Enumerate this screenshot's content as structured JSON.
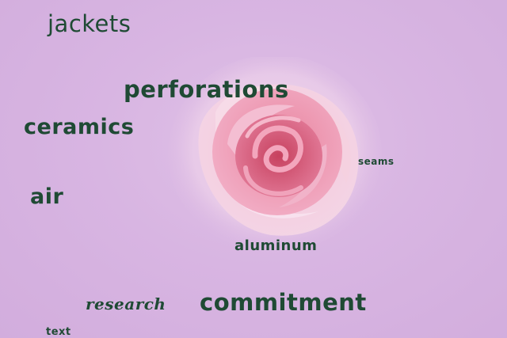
{
  "words": {
    "jackets": "jackets",
    "perforations": "perforations",
    "ceramics": "ceramics",
    "air": "air",
    "seams": "seams",
    "aluminum": "aluminum",
    "research": "research",
    "commitment": "commitment",
    "text": "text"
  },
  "colors": {
    "background": "#d6b2e0",
    "word": "#1f4a34",
    "rose_petal": "#f1b6cc",
    "rose_center": "#d85c82"
  },
  "image": {
    "subject": "pink-rose"
  }
}
